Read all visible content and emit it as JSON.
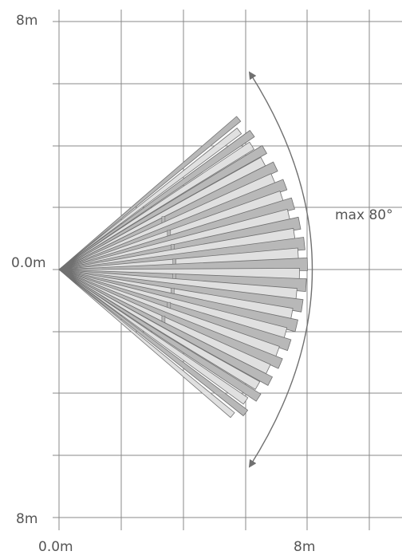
{
  "labels": {
    "y_top": "8m",
    "y_mid": "0.0m",
    "y_bottom": "8m",
    "x_left": "0.0m",
    "x_right": "8m",
    "angle": "max 80°"
  },
  "detection": {
    "max_angle_deg": 80,
    "range_m": 8,
    "beam_count": 34
  },
  "colors": {
    "grid": "#888888",
    "beam_light": "#e0e0e0",
    "beam_dark": "#b8b8b8",
    "beam_stroke": "#707070",
    "arc": "#707070",
    "text": "#555555"
  }
}
